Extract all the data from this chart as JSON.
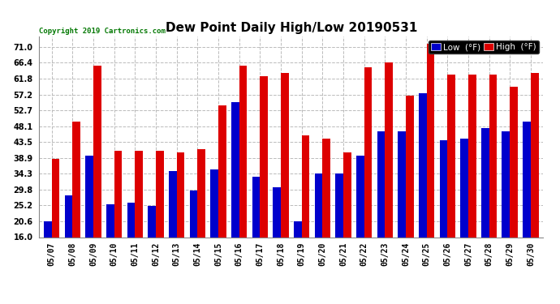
{
  "title": "Dew Point Daily High/Low 20190531",
  "copyright": "Copyright 2019 Cartronics.com",
  "background_color": "#ffffff",
  "plot_bg_color": "#ffffff",
  "grid_color": "#bbbbbb",
  "bar_color_low": "#0000cc",
  "bar_color_high": "#dd0000",
  "dates": [
    "05/07",
    "05/08",
    "05/09",
    "05/10",
    "05/11",
    "05/12",
    "05/13",
    "05/14",
    "05/15",
    "05/16",
    "05/17",
    "05/18",
    "05/19",
    "05/20",
    "05/21",
    "05/22",
    "05/23",
    "05/24",
    "05/25",
    "05/26",
    "05/27",
    "05/28",
    "05/29",
    "05/30"
  ],
  "high_values": [
    38.5,
    49.5,
    65.5,
    41.0,
    41.0,
    41.0,
    40.5,
    41.5,
    54.0,
    65.5,
    62.5,
    63.5,
    45.5,
    44.5,
    40.5,
    65.0,
    66.5,
    57.0,
    72.0,
    63.0,
    63.0,
    63.0,
    59.5,
    63.5
  ],
  "low_values": [
    20.5,
    28.0,
    39.5,
    25.5,
    26.0,
    25.0,
    35.0,
    29.5,
    35.5,
    55.0,
    33.5,
    30.5,
    20.5,
    34.5,
    34.5,
    39.5,
    46.5,
    46.5,
    57.5,
    44.0,
    44.5,
    47.5,
    46.5,
    49.5
  ],
  "ylim_min": 16.0,
  "ylim_max": 74.0,
  "bar_bottom": 16.0,
  "yticks": [
    16.0,
    20.6,
    25.2,
    29.8,
    34.3,
    38.9,
    43.5,
    48.1,
    52.7,
    57.2,
    61.8,
    66.4,
    71.0
  ],
  "bar_width": 0.38,
  "title_fontsize": 11,
  "tick_fontsize": 7,
  "copyright_fontsize": 6.5,
  "legend_fontsize": 7.5
}
